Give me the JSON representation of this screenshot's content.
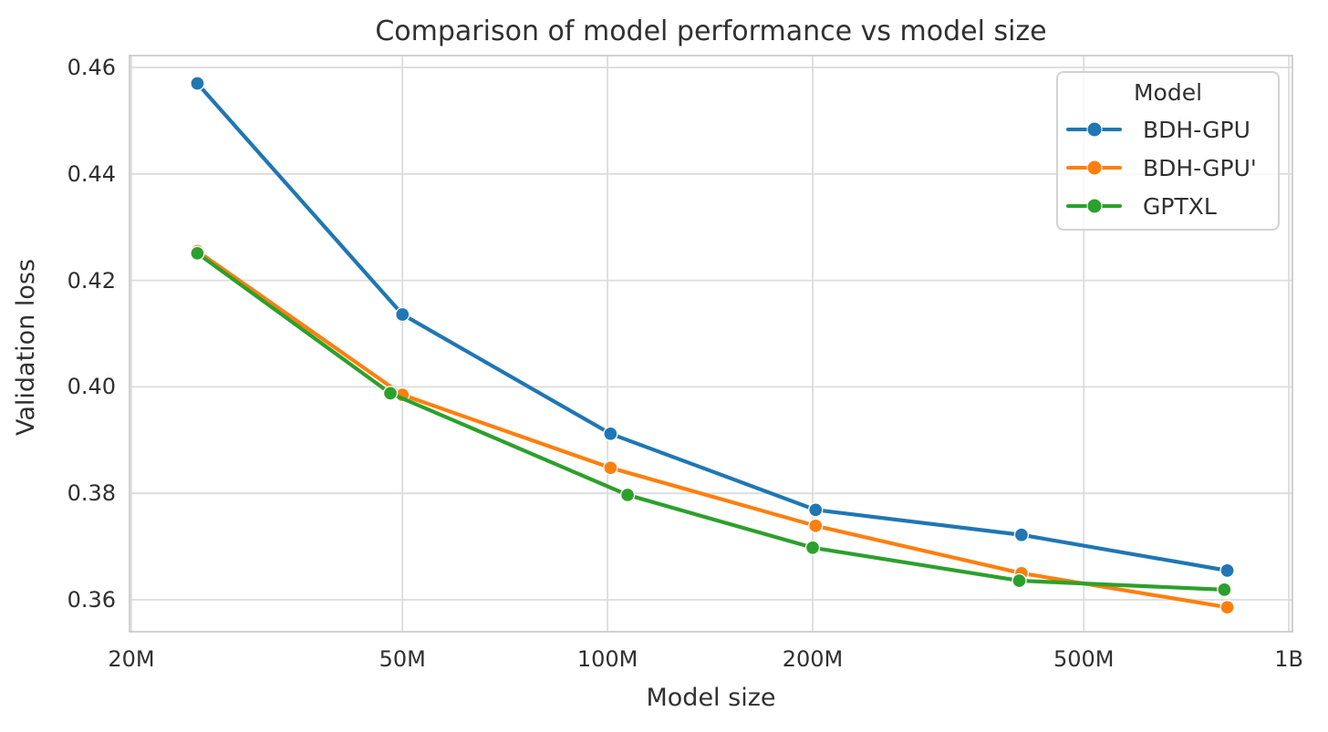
{
  "chart_data": {
    "type": "line",
    "title": "Comparison of model performance vs model size",
    "xlabel": "Model size",
    "ylabel": "Validation loss",
    "x_scale": "log",
    "grid": true,
    "background": "#ffffff",
    "grid_color": "#dcdcdc",
    "spine_color": "#cccccc",
    "text_color": "#303030",
    "xlim_millions": [
      19.9,
      1012
    ],
    "ylim": [
      0.354,
      0.462
    ],
    "x_ticks": {
      "values_millions": [
        20,
        50,
        100,
        200,
        500,
        1000
      ],
      "labels": [
        "20M",
        "50M",
        "100M",
        "200M",
        "500M",
        "1B"
      ]
    },
    "y_ticks": {
      "values": [
        0.36,
        0.38,
        0.4,
        0.42,
        0.44,
        0.46
      ],
      "labels": [
        "0.36",
        "0.38",
        "0.40",
        "0.42",
        "0.44",
        "0.46"
      ]
    },
    "legend": {
      "title": "Model",
      "position": "upper right"
    },
    "series": [
      {
        "name": "BDH-GPU",
        "color": "#1f77b4",
        "x_millions": [
          25,
          50,
          101,
          202,
          405,
          812
        ],
        "y": [
          0.457,
          0.4136,
          0.3912,
          0.3769,
          0.3722,
          0.3655
        ]
      },
      {
        "name": "BDH-GPU'",
        "color": "#ff7f0e",
        "x_millions": [
          25,
          50,
          101,
          202,
          405,
          812
        ],
        "y": [
          0.4255,
          0.3985,
          0.3848,
          0.3739,
          0.365,
          0.3586
        ]
      },
      {
        "name": "GPTXL",
        "color": "#2ca02c",
        "x_millions": [
          25,
          48,
          107,
          200,
          402,
          804
        ],
        "y": [
          0.4251,
          0.3988,
          0.3797,
          0.3698,
          0.3636,
          0.3619
        ]
      }
    ]
  }
}
